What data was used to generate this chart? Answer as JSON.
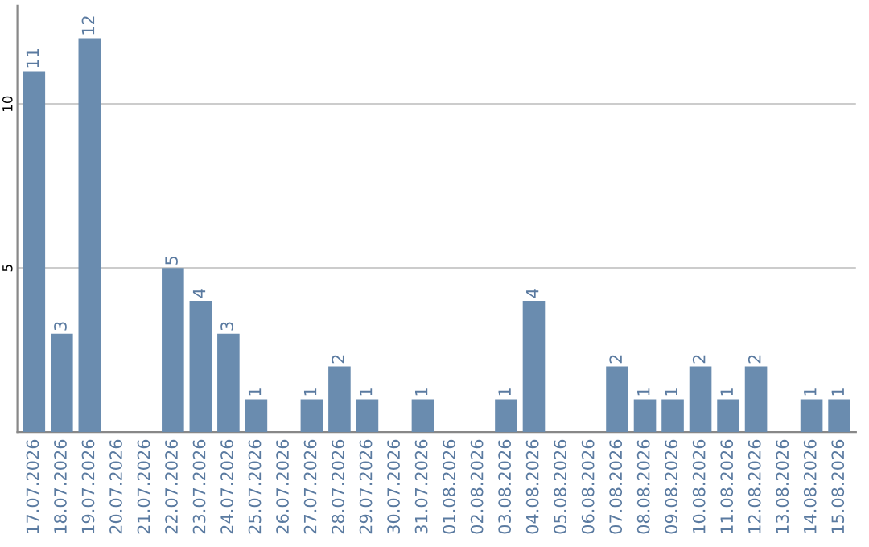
{
  "chart_data": {
    "type": "bar",
    "categories": [
      "17.07.2026",
      "18.07.2026",
      "19.07.2026",
      "20.07.2026",
      "21.07.2026",
      "22.07.2026",
      "23.07.2026",
      "24.07.2026",
      "25.07.2026",
      "26.07.2026",
      "27.07.2026",
      "28.07.2026",
      "29.07.2026",
      "30.07.2026",
      "31.07.2026",
      "01.08.2026",
      "02.08.2026",
      "03.08.2026",
      "04.08.2026",
      "05.08.2026",
      "06.08.2026",
      "07.08.2026",
      "08.08.2026",
      "09.08.2026",
      "10.08.2026",
      "11.08.2026",
      "12.08.2026",
      "13.08.2026",
      "14.08.2026",
      "15.08.2026"
    ],
    "values": [
      11,
      3,
      12,
      0,
      0,
      5,
      4,
      3,
      1,
      0,
      1,
      2,
      1,
      0,
      1,
      0,
      0,
      1,
      4,
      0,
      0,
      2,
      1,
      1,
      2,
      1,
      2,
      0,
      1,
      1
    ],
    "value_labels": [
      "11",
      "3",
      "12",
      null,
      null,
      "5",
      "4",
      "3",
      "1",
      null,
      "1",
      "2",
      "1",
      null,
      "1",
      null,
      null,
      "1",
      "4",
      null,
      null,
      "2",
      "1",
      "1",
      "2",
      "1",
      "2",
      null,
      "1",
      "1"
    ],
    "color": "#6a8caf",
    "ylim": [
      0,
      13
    ],
    "yticks": [
      5,
      10
    ],
    "grid": "y"
  }
}
